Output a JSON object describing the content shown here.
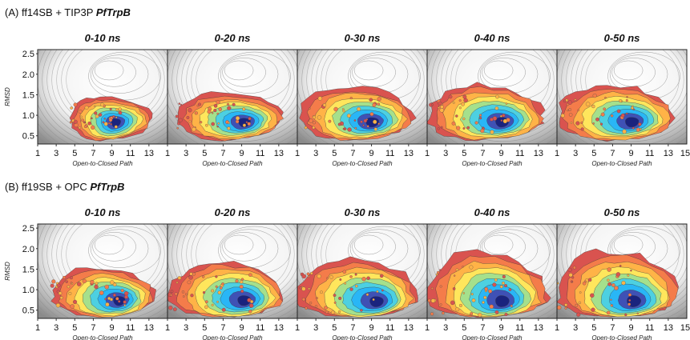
{
  "chart_data": [
    {
      "type": "heatmap",
      "row_label_prefix": "(A) ff14SB + TIP3P ",
      "row_label_emph": "PfTrpB",
      "panel_titles": [
        "0-10 ns",
        "0-20 ns",
        "0-30 ns",
        "0-40 ns",
        "0-50 ns"
      ],
      "xlabel": "Open-to-Closed Path",
      "ylabel": "RMSD",
      "xlim": [
        1,
        15
      ],
      "ylim": [
        0.3,
        2.6
      ],
      "xticks": [
        "1",
        "3",
        "5",
        "7",
        "9",
        "11",
        "13"
      ],
      "last_xtick": "15",
      "yticks": [
        "0.5",
        "1.0",
        "1.5",
        "2.0",
        "2.5"
      ],
      "colormap": [
        "#1a237e",
        "#3f51b5",
        "#29b6f6",
        "#4dd0e1",
        "#a5e08c",
        "#ffe65c",
        "#ffb347",
        "#f47c4a",
        "#d9534f"
      ],
      "background_contour_color": "#8c8c8c",
      "density_peaks": [
        {
          "x_center": 9.5,
          "y_center": 0.85,
          "x_spread": 2.6,
          "y_spread": 0.35,
          "x_min": 4.5,
          "x_max": 13.2,
          "y_max": 1.45
        },
        {
          "x_center": 9.5,
          "y_center": 0.85,
          "x_spread": 3.6,
          "y_spread": 0.38,
          "x_min": 2.0,
          "x_max": 13.2,
          "y_max": 1.55
        },
        {
          "x_center": 9.3,
          "y_center": 0.85,
          "x_spread": 4.2,
          "y_spread": 0.42,
          "x_min": 1.2,
          "x_max": 13.3,
          "y_max": 1.7
        },
        {
          "x_center": 9.3,
          "y_center": 0.85,
          "x_spread": 4.6,
          "y_spread": 0.45,
          "x_min": 1.0,
          "x_max": 13.5,
          "y_max": 1.75
        },
        {
          "x_center": 9.3,
          "y_center": 0.85,
          "x_spread": 4.6,
          "y_spread": 0.45,
          "x_min": 1.0,
          "x_max": 13.5,
          "y_max": 1.75
        }
      ]
    },
    {
      "type": "heatmap",
      "row_label_prefix": "(B) ff19SB + OPC ",
      "row_label_emph": "PfTrpB",
      "panel_titles": [
        "0-10 ns",
        "0-20 ns",
        "0-30 ns",
        "0-40 ns",
        "0-50 ns"
      ],
      "xlabel": "Open-to-Closed Path",
      "ylabel": "RMSD",
      "xlim": [
        1,
        15
      ],
      "ylim": [
        0.3,
        2.6
      ],
      "xticks": [
        "1",
        "3",
        "5",
        "7",
        "9",
        "11",
        "13"
      ],
      "last_xtick": "15",
      "yticks": [
        "0.5",
        "1.0",
        "1.5",
        "2.0",
        "2.5"
      ],
      "colormap": [
        "#1a237e",
        "#3f51b5",
        "#29b6f6",
        "#4dd0e1",
        "#a5e08c",
        "#ffe65c",
        "#ffb347",
        "#f47c4a",
        "#d9534f"
      ],
      "background_contour_color": "#8c8c8c",
      "density_peaks": [
        {
          "x_center": 10.0,
          "y_center": 0.75,
          "x_spread": 2.8,
          "y_spread": 0.38,
          "x_min": 2.5,
          "x_max": 13.5,
          "y_max": 1.55
        },
        {
          "x_center": 9.5,
          "y_center": 0.75,
          "x_spread": 3.6,
          "y_spread": 0.45,
          "x_min": 1.2,
          "x_max": 13.5,
          "y_max": 1.7
        },
        {
          "x_center": 9.8,
          "y_center": 0.72,
          "x_spread": 4.2,
          "y_spread": 0.48,
          "x_min": 1.0,
          "x_max": 13.8,
          "y_max": 1.75
        },
        {
          "x_center": 9.3,
          "y_center": 0.72,
          "x_spread": 4.6,
          "y_spread": 0.55,
          "x_min": 1.0,
          "x_max": 13.8,
          "y_max": 1.95
        },
        {
          "x_center": 9.5,
          "y_center": 0.72,
          "x_spread": 4.6,
          "y_spread": 0.55,
          "x_min": 1.0,
          "x_max": 14.0,
          "y_max": 1.95
        }
      ]
    }
  ]
}
